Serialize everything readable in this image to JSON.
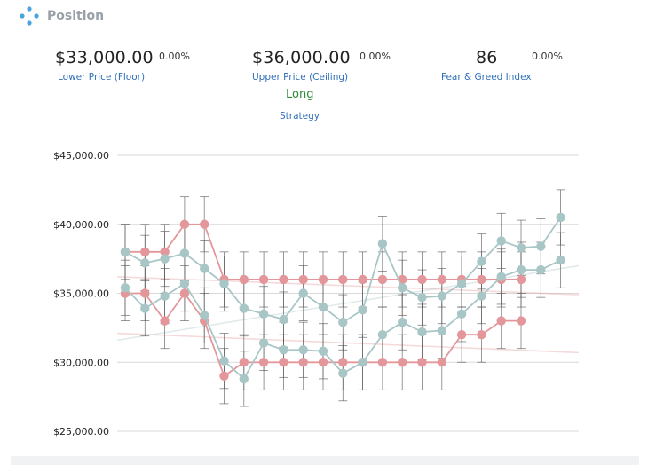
{
  "header": {
    "title": "Position",
    "icon": "diamond-dots-icon",
    "icon_color": "#4aa3df"
  },
  "stats": {
    "floor": {
      "value": "$33,000.00",
      "change": "0.00%",
      "label": "Lower Price (Floor)"
    },
    "ceiling": {
      "value": "$36,000.00",
      "change": "0.00%",
      "label": "Upper Price (Ceiling)"
    },
    "fear_greed": {
      "value": "86",
      "change": "0.00%",
      "label": "Fear & Greed Index"
    }
  },
  "strategy": {
    "value": "Long",
    "label": "Strategy"
  },
  "colors": {
    "red": "#e4979b",
    "teal": "#a9c6c6",
    "grid": "#d9d9d9",
    "error": "#555555"
  },
  "chart_data": {
    "type": "line",
    "y_ticks": [
      "$45,000.00",
      "$40,000.00",
      "$35,000.00",
      "$30,000.00",
      "$25,000.00"
    ],
    "y_tick_values": [
      45000,
      40000,
      35000,
      30000,
      25000
    ],
    "ylim": [
      25000,
      45000
    ],
    "grid": true,
    "error_bar": 2000,
    "series": [
      {
        "color": "red",
        "values": [
          38000,
          38000,
          38000,
          40000,
          40000,
          36000,
          36000,
          36000,
          36000,
          36000,
          36000,
          36000,
          36000,
          36000,
          36000,
          36000,
          36000,
          36000,
          36000,
          36000,
          36000
        ]
      },
      {
        "color": "red",
        "values": [
          35000,
          35000,
          33000,
          35000,
          33000,
          29000,
          30000,
          30000,
          30000,
          30000,
          30000,
          30000,
          30000,
          30000,
          30000,
          30000,
          30000,
          32000,
          32000,
          33000,
          33000
        ]
      },
      {
        "color": "teal",
        "values": [
          38000,
          37200,
          37500,
          37900,
          36800,
          35700,
          33900,
          33500,
          33100,
          35000,
          34000,
          32900,
          33800,
          38600,
          35400,
          34700,
          34800,
          35700,
          37300,
          38800,
          38300,
          38400,
          40500
        ]
      },
      {
        "color": "teal",
        "values": [
          35400,
          33900,
          34800,
          35700,
          33400,
          30100,
          28800,
          31400,
          30900,
          30900,
          30800,
          29200,
          30000,
          32000,
          32900,
          32200,
          32300,
          33500,
          34800,
          36200,
          36700,
          36700,
          37400
        ]
      }
    ],
    "trends": [
      {
        "color": "red",
        "from": 36200,
        "to": 34900
      },
      {
        "color": "red",
        "from": 32100,
        "to": 30700
      },
      {
        "color": "teal",
        "from": 31600,
        "to": 37000
      }
    ]
  }
}
